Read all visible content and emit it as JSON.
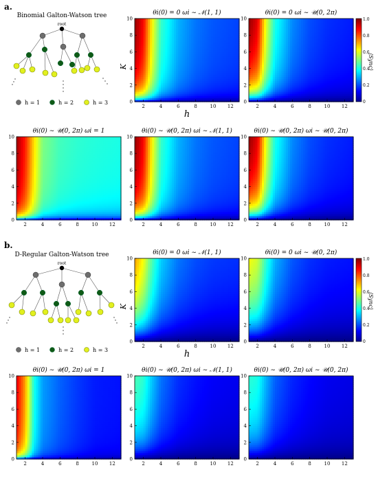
{
  "panel_labels": [
    "a.",
    "b."
  ],
  "trees": [
    {
      "title": "Binomial Galton-Watson tree",
      "root_label": "root",
      "legend": [
        "h = 1",
        "h = 2",
        "h = 3"
      ]
    },
    {
      "title": "D-Regular Galton-Watson tree",
      "root_label": "root",
      "legend": [
        "h = 1",
        "h = 2",
        "h = 3"
      ]
    }
  ],
  "colorbar": {
    "label": "⟨Sync⟩",
    "ticks": [
      "0",
      "0.2",
      "0.4",
      "0.6",
      "0.8",
      "1.0"
    ]
  },
  "shared_axes": {
    "xlabel": "h",
    "ylabel": "K"
  },
  "chart_data": [
    {
      "type": "heatmap",
      "block": "a",
      "row": 1,
      "col": 1,
      "title": "θi(0) = 0   ωi ∼ 𝒩(1, 1)",
      "xlabel": "h",
      "ylabel": "K",
      "xlim": [
        1,
        13
      ],
      "ylim": [
        0,
        10
      ],
      "zlim": [
        0,
        1
      ],
      "xticks": [
        2,
        4,
        6,
        8,
        10,
        12
      ],
      "yticks": [
        0,
        2,
        4,
        6,
        8,
        10
      ],
      "sync_h": [
        1,
        2,
        3,
        4,
        6,
        8,
        10,
        13
      ],
      "sync_at_K_max": [
        0.98,
        0.88,
        0.63,
        0.43,
        0.3,
        0.24,
        0.21,
        0.19
      ],
      "k_half": 0.6
    },
    {
      "type": "heatmap",
      "block": "a",
      "row": 1,
      "col": 2,
      "title": "θi(0) = 0   ωi ∼ 𝒰(0, 2π)",
      "xlabel": "",
      "ylabel": "",
      "xlim": [
        1,
        13
      ],
      "ylim": [
        0,
        10
      ],
      "zlim": [
        0,
        1
      ],
      "xticks": [
        2,
        4,
        6,
        8,
        10,
        12
      ],
      "yticks": [
        0,
        2,
        4,
        6,
        8,
        10
      ],
      "sync_h": [
        1,
        2,
        3,
        4,
        6,
        8,
        10,
        13
      ],
      "sync_at_K_max": [
        0.98,
        0.9,
        0.6,
        0.4,
        0.26,
        0.2,
        0.17,
        0.15
      ],
      "k_half": 1.2
    },
    {
      "type": "heatmap",
      "block": "a",
      "row": 2,
      "col": 0,
      "title": "θi(0) ∼ 𝒰(0, 2π)   ωi = 1",
      "xlabel": "",
      "ylabel": "",
      "xlim": [
        1,
        13
      ],
      "ylim": [
        0,
        10
      ],
      "zlim": [
        0,
        1
      ],
      "xticks": [
        2,
        4,
        6,
        8,
        10,
        12
      ],
      "yticks": [
        0,
        2,
        4,
        6,
        8,
        10
      ],
      "sync_h": [
        1,
        2,
        3,
        4,
        6,
        8,
        10,
        13
      ],
      "sync_at_K_max": [
        0.97,
        0.85,
        0.66,
        0.5,
        0.44,
        0.42,
        0.41,
        0.4
      ],
      "k_half": 0.3
    },
    {
      "type": "heatmap",
      "block": "a",
      "row": 2,
      "col": 1,
      "title": "θi(0) ∼ 𝒰(0, 2π)   ωi ∼ 𝒩(1, 1)",
      "xlabel": "",
      "ylabel": "",
      "xlim": [
        1,
        13
      ],
      "ylim": [
        0,
        10
      ],
      "zlim": [
        0,
        1
      ],
      "xticks": [
        2,
        4,
        6,
        8,
        10,
        12
      ],
      "yticks": [
        0,
        2,
        4,
        6,
        8,
        10
      ],
      "sync_h": [
        1,
        2,
        3,
        4,
        6,
        8,
        10,
        13
      ],
      "sync_at_K_max": [
        0.98,
        0.88,
        0.63,
        0.43,
        0.3,
        0.24,
        0.21,
        0.19
      ],
      "k_half": 0.6
    },
    {
      "type": "heatmap",
      "block": "a",
      "row": 2,
      "col": 2,
      "title": "θi(0) ∼ 𝒰(0, 2π)   ωi ∼ 𝒰(0, 2π)",
      "xlabel": "",
      "ylabel": "",
      "xlim": [
        1,
        13
      ],
      "ylim": [
        0,
        10
      ],
      "zlim": [
        0,
        1
      ],
      "xticks": [
        2,
        4,
        6,
        8,
        10,
        12
      ],
      "yticks": [
        0,
        2,
        4,
        6,
        8,
        10
      ],
      "sync_h": [
        1,
        2,
        3,
        4,
        6,
        8,
        10,
        13
      ],
      "sync_at_K_max": [
        0.98,
        0.9,
        0.6,
        0.4,
        0.26,
        0.2,
        0.17,
        0.15
      ],
      "k_half": 1.2
    },
    {
      "type": "heatmap",
      "block": "b",
      "row": 1,
      "col": 1,
      "title": "θi(0) = 0   ωi ∼ 𝒩(1, 1)",
      "xlabel": "h",
      "ylabel": "K",
      "xlim": [
        1,
        13
      ],
      "ylim": [
        0,
        10
      ],
      "zlim": [
        0,
        1
      ],
      "xticks": [
        2,
        4,
        6,
        8,
        10,
        12
      ],
      "yticks": [
        0,
        2,
        4,
        6,
        8,
        10
      ],
      "sync_h": [
        1,
        2,
        3,
        4,
        6,
        8,
        10,
        13
      ],
      "sync_at_K_max": [
        0.72,
        0.62,
        0.45,
        0.33,
        0.24,
        0.2,
        0.18,
        0.17
      ],
      "k_half": 3.0
    },
    {
      "type": "heatmap",
      "block": "b",
      "row": 1,
      "col": 2,
      "title": "θi(0) = 0   ωi ∼ 𝒰(0, 2π)",
      "xlabel": "",
      "ylabel": "",
      "xlim": [
        1,
        13
      ],
      "ylim": [
        0,
        10
      ],
      "zlim": [
        0,
        1
      ],
      "xticks": [
        2,
        4,
        6,
        8,
        10,
        12
      ],
      "yticks": [
        0,
        2,
        4,
        6,
        8,
        10
      ],
      "sync_h": [
        1,
        2,
        3,
        4,
        6,
        8,
        10,
        13
      ],
      "sync_at_K_max": [
        0.62,
        0.58,
        0.42,
        0.3,
        0.21,
        0.17,
        0.15,
        0.14
      ],
      "k_half": 3.5
    },
    {
      "type": "heatmap",
      "block": "b",
      "row": 2,
      "col": 0,
      "title": "θi(0) ∼ 𝒰(0, 2π)   ωi = 1",
      "xlabel": "",
      "ylabel": "",
      "xlim": [
        1,
        13
      ],
      "ylim": [
        0,
        10
      ],
      "zlim": [
        0,
        1
      ],
      "xticks": [
        2,
        4,
        6,
        8,
        10,
        12
      ],
      "yticks": [
        0,
        2,
        4,
        6,
        8,
        10
      ],
      "sync_h": [
        1,
        2,
        3,
        4,
        6,
        8,
        10,
        13
      ],
      "sync_at_K_max": [
        0.9,
        0.72,
        0.4,
        0.28,
        0.22,
        0.18,
        0.15,
        0.14
      ],
      "k_half": 0.25
    },
    {
      "type": "heatmap",
      "block": "b",
      "row": 2,
      "col": 1,
      "title": "θi(0) ∼ 𝒰(0, 2π)   ωi ∼ 𝒩(1, 1)",
      "xlabel": "",
      "ylabel": "",
      "xlim": [
        1,
        13
      ],
      "ylim": [
        0,
        10
      ],
      "zlim": [
        0,
        1
      ],
      "xticks": [
        2,
        4,
        6,
        8,
        10,
        12
      ],
      "yticks": [
        0,
        2,
        4,
        6,
        8,
        10
      ],
      "sync_h": [
        1,
        2,
        3,
        4,
        6,
        8,
        10,
        13
      ],
      "sync_at_K_max": [
        0.45,
        0.42,
        0.32,
        0.24,
        0.17,
        0.14,
        0.12,
        0.11
      ],
      "k_half": 2.0
    },
    {
      "type": "heatmap",
      "block": "b",
      "row": 2,
      "col": 2,
      "title": "θi(0) ∼ 𝒰(0, 2π)   ωi ∼ 𝒰(0, 2π)",
      "xlabel": "",
      "ylabel": "",
      "xlim": [
        1,
        13
      ],
      "ylim": [
        0,
        10
      ],
      "zlim": [
        0,
        1
      ],
      "xticks": [
        2,
        4,
        6,
        8,
        10,
        12
      ],
      "yticks": [
        0,
        2,
        4,
        6,
        8,
        10
      ],
      "sync_h": [
        1,
        2,
        3,
        4,
        6,
        8,
        10,
        13
      ],
      "sync_at_K_max": [
        0.42,
        0.4,
        0.3,
        0.22,
        0.16,
        0.13,
        0.11,
        0.1
      ],
      "k_half": 2.0
    }
  ]
}
